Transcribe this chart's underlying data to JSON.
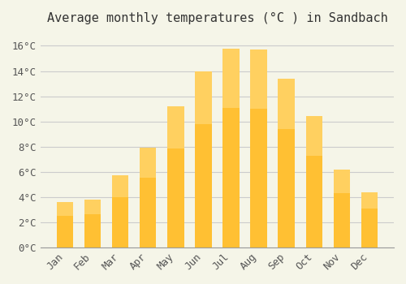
{
  "title": "Average monthly temperatures (°C ) in Sandbach",
  "months": [
    "Jan",
    "Feb",
    "Mar",
    "Apr",
    "May",
    "Jun",
    "Jul",
    "Aug",
    "Sep",
    "Oct",
    "Nov",
    "Dec"
  ],
  "values": [
    3.6,
    3.8,
    5.7,
    7.9,
    11.2,
    14.0,
    15.8,
    15.7,
    13.4,
    10.4,
    6.2,
    4.4
  ],
  "bar_color_top": "#FFC033",
  "bar_color_bottom": "#FFB020",
  "background_color": "#F5F5E8",
  "grid_color": "#CCCCCC",
  "ylim": [
    0,
    17
  ],
  "yticks": [
    0,
    2,
    4,
    6,
    8,
    10,
    12,
    14,
    16
  ],
  "ytick_labels": [
    "0°C",
    "2°C",
    "4°C",
    "6°C",
    "8°C",
    "10°C",
    "12°C",
    "14°C",
    "16°C"
  ],
  "title_fontsize": 11,
  "tick_fontsize": 9,
  "font_family": "monospace"
}
